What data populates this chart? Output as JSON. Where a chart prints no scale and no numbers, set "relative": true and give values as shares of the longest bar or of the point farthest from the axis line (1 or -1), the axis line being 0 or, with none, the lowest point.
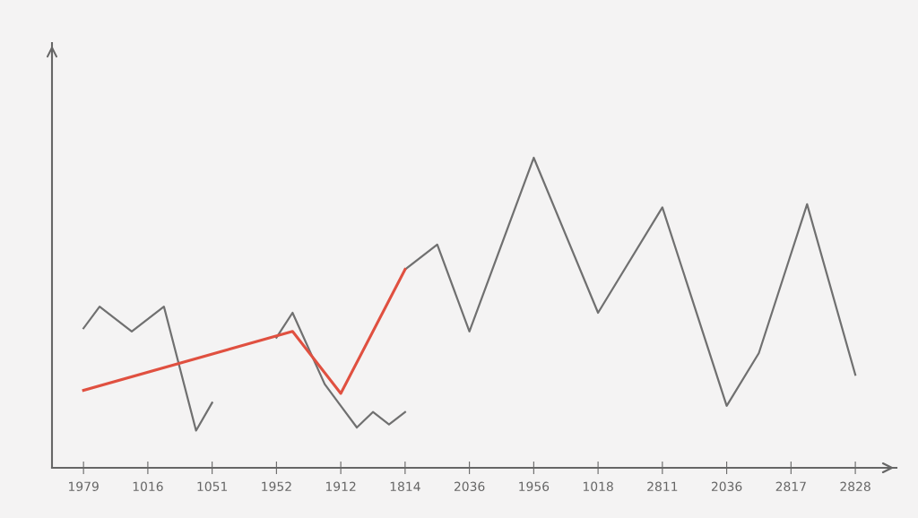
{
  "chart_data": {
    "type": "line",
    "relative": true,
    "categories": [
      "1979",
      null,
      null,
      null,
      "1016",
      null,
      null,
      null,
      "1051",
      null,
      null,
      null,
      "1952",
      null,
      null,
      null,
      "1912",
      null,
      null,
      null,
      "1814",
      null,
      null,
      null,
      "2036",
      null,
      null,
      null,
      "1956",
      null,
      null,
      null,
      "1018",
      null,
      null,
      null,
      "2811",
      null,
      null,
      null,
      "2036",
      null,
      null,
      null,
      "2817",
      null,
      null,
      null,
      "2828"
    ],
    "grid": false,
    "legend": false,
    "marker": "none",
    "line_style": "solid",
    "series": [
      {
        "color": "#707070",
        "values": [
          0.45,
          0.52,
          null,
          0.44,
          null,
          0.52,
          null,
          0.12,
          0.21,
          null,
          null,
          null,
          null,
          null,
          null,
          null,
          null,
          null,
          null,
          null,
          null,
          null,
          null,
          null,
          null,
          null,
          null,
          null,
          null,
          null,
          null,
          null,
          null,
          null,
          null,
          null,
          null,
          null,
          null,
          null,
          null,
          null,
          null,
          null,
          null,
          null,
          null,
          null,
          null
        ]
      },
      {
        "color": "#707070",
        "values": [
          null,
          null,
          null,
          null,
          null,
          null,
          null,
          null,
          null,
          null,
          null,
          null,
          0.42,
          0.5,
          null,
          0.27,
          0.2,
          0.13,
          0.18,
          0.14,
          0.18,
          null,
          null,
          null,
          null,
          null,
          null,
          null,
          null,
          null,
          null,
          null,
          null,
          null,
          null,
          null,
          null,
          null,
          null,
          null,
          null,
          null,
          null,
          null,
          null,
          null,
          null,
          null,
          null
        ]
      },
      {
        "color": "#707070",
        "values": [
          null,
          null,
          null,
          null,
          null,
          null,
          null,
          null,
          null,
          null,
          null,
          null,
          null,
          null,
          null,
          null,
          null,
          null,
          null,
          null,
          0.64,
          null,
          0.72,
          null,
          0.44,
          null,
          null,
          null,
          1.0,
          null,
          null,
          null,
          0.5,
          null,
          null,
          null,
          0.84,
          null,
          null,
          null,
          0.2,
          null,
          0.37,
          null,
          0.69,
          0.85,
          null,
          null,
          0.3
        ]
      },
      {
        "color": "#e05040",
        "values": [
          0.25,
          null,
          null,
          null,
          null,
          null,
          null,
          null,
          null,
          null,
          null,
          null,
          null,
          0.44,
          null,
          null,
          0.24,
          null,
          null,
          null,
          0.64,
          null,
          null,
          null,
          null,
          null,
          null,
          null,
          null,
          null,
          null,
          null,
          null,
          null,
          null,
          null,
          null,
          null,
          null,
          null,
          null,
          null,
          null,
          null,
          null,
          null,
          null,
          null,
          null
        ]
      }
    ]
  }
}
